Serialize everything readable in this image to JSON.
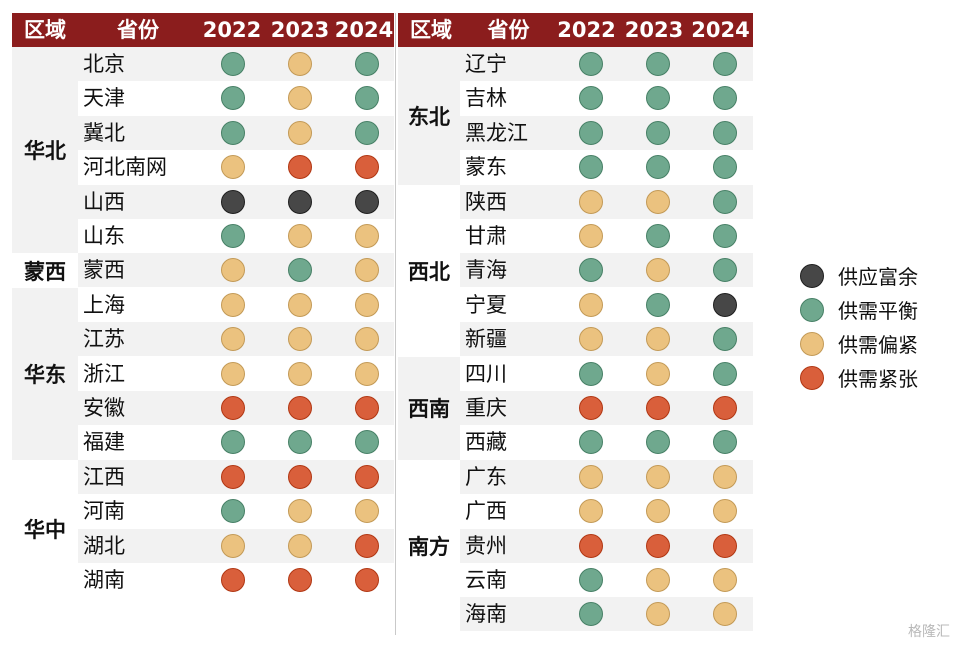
{
  "legend": [
    {
      "key": "surplus",
      "label": "供应富余",
      "color": "#474747"
    },
    {
      "key": "balanced",
      "label": "供需平衡",
      "color": "#6fa88e"
    },
    {
      "key": "tight",
      "label": "供需偏紧",
      "color": "#ebc27f"
    },
    {
      "key": "strained",
      "label": "供需紧张",
      "color": "#d95f3b"
    }
  ],
  "left_table": {
    "headers": [
      "区域",
      "省份",
      "2022",
      "2023",
      "2024"
    ],
    "regions": [
      {
        "name": "华北",
        "rows": [
          {
            "province": "北京",
            "status": [
              "balanced",
              "tight",
              "balanced"
            ]
          },
          {
            "province": "天津",
            "status": [
              "balanced",
              "tight",
              "balanced"
            ]
          },
          {
            "province": "冀北",
            "status": [
              "balanced",
              "tight",
              "balanced"
            ]
          },
          {
            "province": "河北南网",
            "status": [
              "tight",
              "strained",
              "strained"
            ]
          },
          {
            "province": "山西",
            "status": [
              "surplus",
              "surplus",
              "surplus"
            ]
          },
          {
            "province": "山东",
            "status": [
              "balanced",
              "tight",
              "tight"
            ]
          }
        ]
      },
      {
        "name": "蒙西",
        "rows": [
          {
            "province": "蒙西",
            "status": [
              "tight",
              "balanced",
              "tight"
            ]
          }
        ]
      },
      {
        "name": "华东",
        "rows": [
          {
            "province": "上海",
            "status": [
              "tight",
              "tight",
              "tight"
            ]
          },
          {
            "province": "江苏",
            "status": [
              "tight",
              "tight",
              "tight"
            ]
          },
          {
            "province": "浙江",
            "status": [
              "tight",
              "tight",
              "tight"
            ]
          },
          {
            "province": "安徽",
            "status": [
              "strained",
              "strained",
              "strained"
            ]
          },
          {
            "province": "福建",
            "status": [
              "balanced",
              "balanced",
              "balanced"
            ]
          }
        ]
      },
      {
        "name": "华中",
        "rows": [
          {
            "province": "江西",
            "status": [
              "strained",
              "strained",
              "strained"
            ]
          },
          {
            "province": "河南",
            "status": [
              "balanced",
              "tight",
              "tight"
            ]
          },
          {
            "province": "湖北",
            "status": [
              "tight",
              "tight",
              "strained"
            ]
          },
          {
            "province": "湖南",
            "status": [
              "strained",
              "strained",
              "strained"
            ]
          }
        ]
      }
    ]
  },
  "right_table": {
    "headers": [
      "区域",
      "省份",
      "2022",
      "2023",
      "2024"
    ],
    "regions": [
      {
        "name": "东北",
        "rows": [
          {
            "province": "辽宁",
            "status": [
              "balanced",
              "balanced",
              "balanced"
            ]
          },
          {
            "province": "吉林",
            "status": [
              "balanced",
              "balanced",
              "balanced"
            ]
          },
          {
            "province": "黑龙江",
            "status": [
              "balanced",
              "balanced",
              "balanced"
            ]
          },
          {
            "province": "蒙东",
            "status": [
              "balanced",
              "balanced",
              "balanced"
            ]
          }
        ]
      },
      {
        "name": "西北",
        "rows": [
          {
            "province": "陕西",
            "status": [
              "tight",
              "tight",
              "balanced"
            ]
          },
          {
            "province": "甘肃",
            "status": [
              "tight",
              "balanced",
              "balanced"
            ]
          },
          {
            "province": "青海",
            "status": [
              "balanced",
              "tight",
              "balanced"
            ]
          },
          {
            "province": "宁夏",
            "status": [
              "tight",
              "balanced",
              "surplus"
            ]
          },
          {
            "province": "新疆",
            "status": [
              "tight",
              "tight",
              "balanced"
            ]
          }
        ]
      },
      {
        "name": "西南",
        "rows": [
          {
            "province": "四川",
            "status": [
              "balanced",
              "tight",
              "balanced"
            ]
          },
          {
            "province": "重庆",
            "status": [
              "strained",
              "strained",
              "strained"
            ]
          },
          {
            "province": "西藏",
            "status": [
              "balanced",
              "balanced",
              "balanced"
            ]
          }
        ]
      },
      {
        "name": "南方",
        "rows": [
          {
            "province": "广东",
            "status": [
              "tight",
              "tight",
              "tight"
            ]
          },
          {
            "province": "广西",
            "status": [
              "tight",
              "tight",
              "tight"
            ]
          },
          {
            "province": "贵州",
            "status": [
              "strained",
              "strained",
              "strained"
            ]
          },
          {
            "province": "云南",
            "status": [
              "balanced",
              "tight",
              "tight"
            ]
          },
          {
            "province": "海南",
            "status": [
              "balanced",
              "tight",
              "tight"
            ]
          }
        ]
      }
    ]
  },
  "watermark": "格隆汇"
}
